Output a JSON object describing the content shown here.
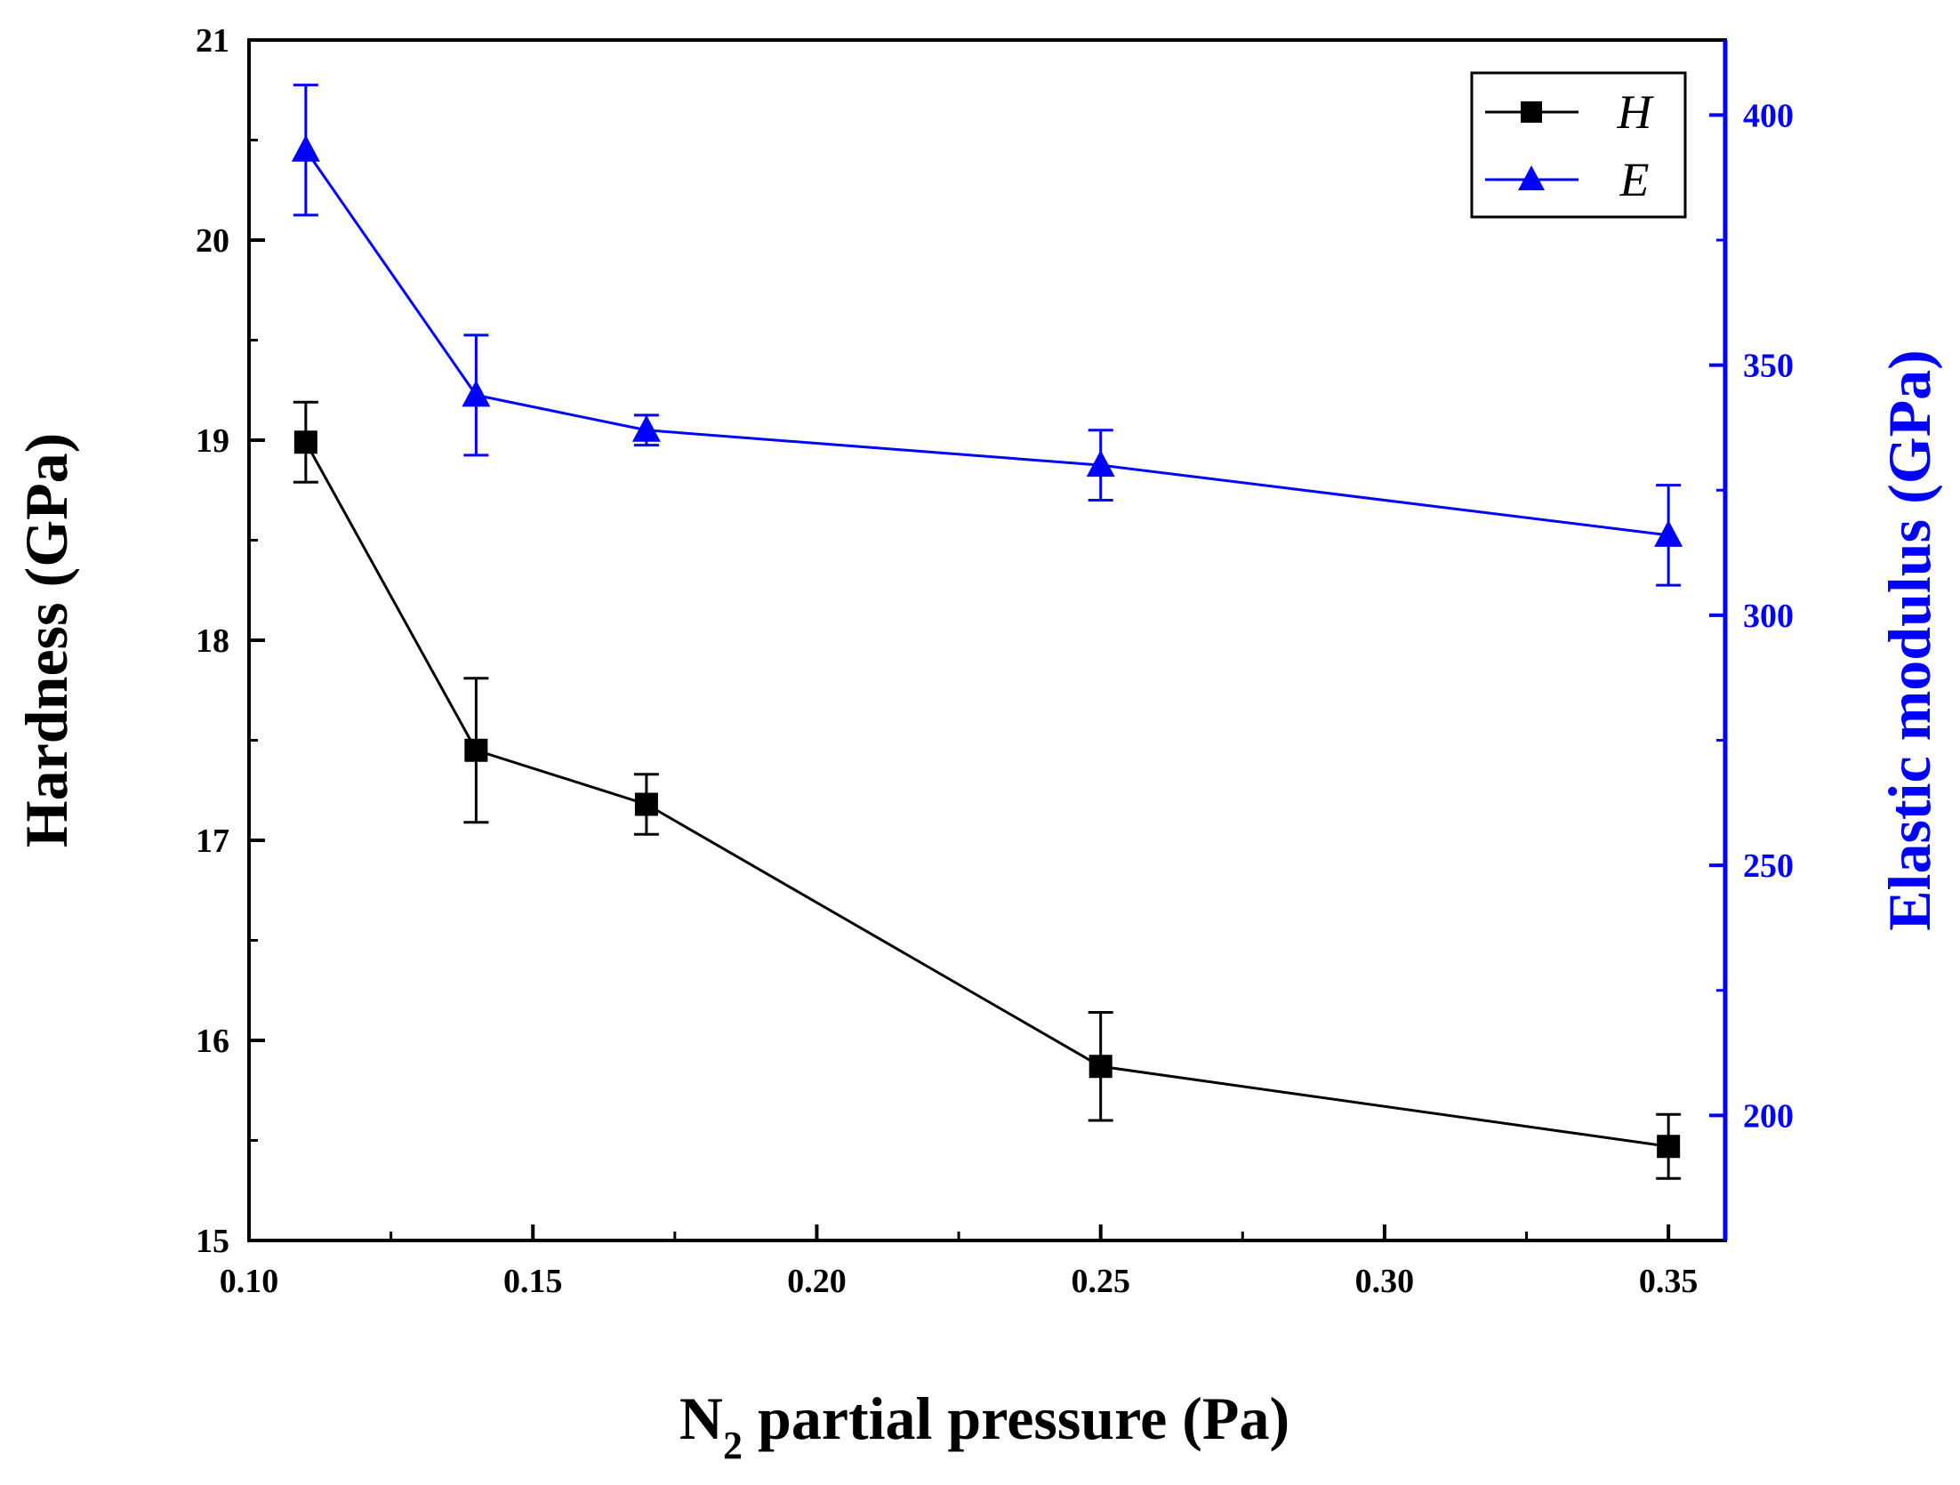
{
  "chart_data": {
    "type": "line",
    "xlabel": "N2 partial pressure (Pa)",
    "xlabel_main": "N",
    "xlabel_sub": "2",
    "xlabel_rest": " partial pressure (Pa)",
    "ylabel": "Hardness (GPa)",
    "y2label": "Elastic modulus (GPa)",
    "xlim": [
      0.1,
      0.36
    ],
    "ylim": [
      15,
      21
    ],
    "y2lim": [
      175,
      415
    ],
    "xticks": [
      0.1,
      0.15,
      0.2,
      0.25,
      0.3,
      0.35
    ],
    "xtick_labels": [
      "0.10",
      "0.15",
      "0.20",
      "0.25",
      "0.30",
      "0.35"
    ],
    "yticks": [
      15,
      16,
      17,
      18,
      19,
      20,
      21
    ],
    "ytick_labels": [
      "15",
      "16",
      "17",
      "18",
      "19",
      "20",
      "21"
    ],
    "y2ticks": [
      200,
      250,
      300,
      350,
      400
    ],
    "y2tick_labels": [
      "200",
      "250",
      "300",
      "350",
      "400"
    ],
    "legend_position": "top-right",
    "grid": false,
    "series": [
      {
        "name": "H",
        "axis": "left",
        "color": "#000000",
        "marker": "square",
        "x": [
          0.11,
          0.14,
          0.17,
          0.25,
          0.35
        ],
        "y": [
          18.99,
          17.45,
          17.18,
          15.87,
          15.47
        ],
        "error": [
          0.2,
          0.36,
          0.15,
          0.27,
          0.16
        ]
      },
      {
        "name": "E",
        "axis": "right",
        "color": "#0000FF",
        "marker": "triangle",
        "x": [
          0.11,
          0.14,
          0.17,
          0.25,
          0.35
        ],
        "y": [
          393,
          344,
          337,
          330,
          316
        ],
        "error": [
          13,
          12,
          3,
          7,
          10
        ]
      }
    ]
  }
}
